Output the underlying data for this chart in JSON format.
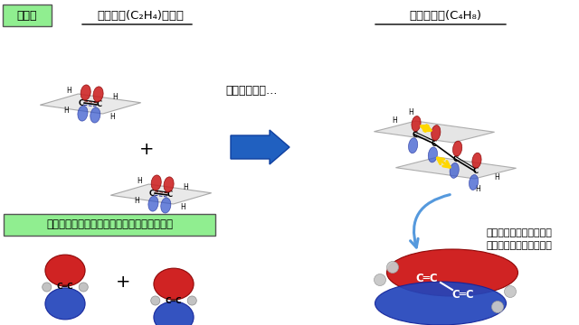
{
  "bg_color": "#ffffff",
  "title_modzu": "模式図",
  "title_modzu_bg": "#90EE90",
  "title_ethylene": "エチレン(C₂H₄)２分子",
  "title_butadiene": "ブタジエン(C₄H₈)",
  "label_adjacent": "隣接させると…",
  "label_new_interaction": "新たな相互作用が生じ，\n軌道が分子全体に広がる",
  "label_computer": "コンピュータシミュレーションを用いた描画",
  "label_computer_bg": "#90EE90",
  "arrow_color": "#2060C0",
  "yellow_arrow_color": "#FFD700",
  "red_orbital": "#CC2020",
  "blue_orbital": "#3355CC",
  "molecule_text_color": "#000000"
}
